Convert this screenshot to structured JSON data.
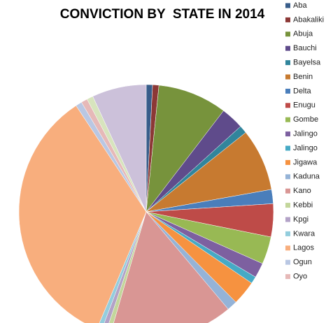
{
  "chart_data": {
    "type": "pie",
    "title": "CONVICTION BY  STATE IN 2014",
    "categories": [
      "Aba",
      "Abakaliki",
      "Abuja",
      "Bauchi",
      "Bayelsa",
      "Benin",
      "Delta",
      "Enugu",
      "Gombe",
      "Jalingo",
      "Jalingo",
      "Jigawa",
      "Kaduna",
      "Kano",
      "Kebbi",
      "Kpgi",
      "Kwara",
      "Lagos",
      "Ogun",
      "Oyo",
      null,
      null
    ],
    "values": [
      0.8,
      0.8,
      8.8,
      2.9,
      1,
      7.9,
      1.8,
      4.2,
      3.5,
      1.9,
      0.9,
      3.1,
      1.3,
      15.7,
      0.6,
      0.6,
      0.6,
      34.4,
      0.8,
      0.8,
      0.8,
      6.9
    ],
    "colors": [
      "#385d8a",
      "#8c3836",
      "#77933c",
      "#5f4b8b",
      "#31859c",
      "#c77a30",
      "#4a7ebb",
      "#be4b48",
      "#98b954",
      "#7d60a0",
      "#46aac5",
      "#f69240",
      "#95b3d7",
      "#d99694",
      "#c3d69b",
      "#b3a2c7",
      "#93cddd",
      "#f8ae7d",
      "#b9c7e3",
      "#e6b9b8",
      "#d7e4bd",
      "#ccc1da"
    ],
    "legend": "right"
  }
}
